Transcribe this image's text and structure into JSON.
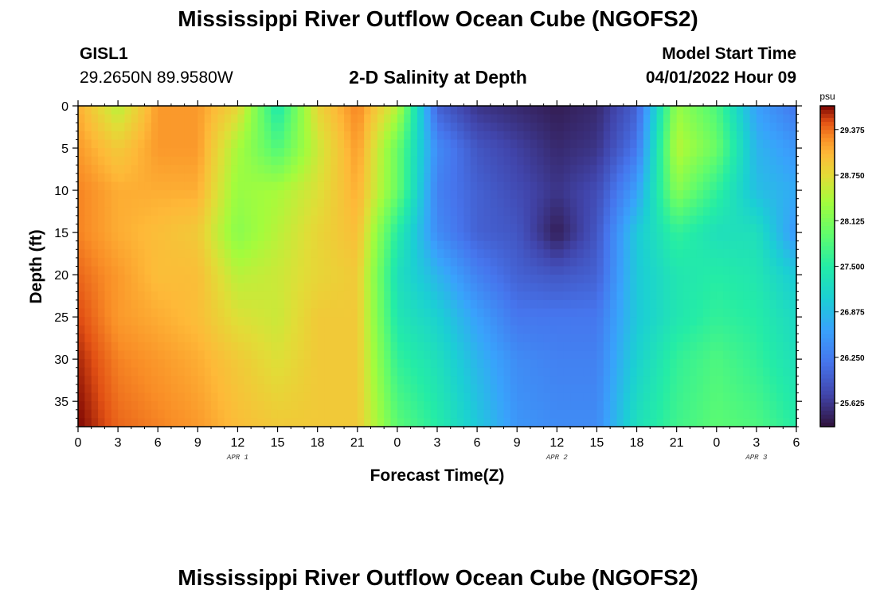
{
  "page": {
    "title": "Mississippi River Outflow Ocean Cube (NGOFS2)",
    "title_repeat": "Mississippi River Outflow Ocean Cube (NGOFS2)",
    "station": "GISL1",
    "coords": "29.2650N  89.9580W",
    "subtitle": "2-D Salinity at Depth",
    "model_start_label": "Model Start Time",
    "model_start_value": "04/01/2022 Hour 09"
  },
  "chart_data": {
    "type": "heatmap",
    "xlabel": "Forecast Time(Z)",
    "ylabel": "Depth (ft)",
    "x_ticks": [
      "0",
      "3",
      "6",
      "9",
      "12",
      "15",
      "18",
      "21",
      "0",
      "3",
      "6",
      "9",
      "12",
      "15",
      "18",
      "21",
      "0",
      "3",
      "6"
    ],
    "x_date_labels": [
      {
        "label": "APR 1",
        "at_hour": 12
      },
      {
        "label": "APR 2",
        "at_hour": 36
      },
      {
        "label": "APR 3",
        "at_hour": 51
      }
    ],
    "x_range_hours": [
      0,
      54
    ],
    "y_ticks": [
      0,
      5,
      10,
      15,
      20,
      25,
      30,
      35
    ],
    "y_range": [
      0,
      38
    ],
    "y_inverted": true,
    "colorbar": {
      "unit": "psu",
      "ticks": [
        "29.375",
        "28.750",
        "28.125",
        "27.500",
        "26.875",
        "26.250",
        "25.625"
      ],
      "range": [
        25.3,
        29.7
      ]
    },
    "grid_hours": [
      0,
      3,
      6,
      9,
      12,
      15,
      18,
      21,
      24,
      27,
      30,
      33,
      36,
      39,
      42,
      45,
      48,
      51,
      54
    ],
    "grid_depths": [
      0,
      5,
      10,
      15,
      20,
      25,
      30,
      38
    ],
    "salinity": [
      [
        29.1,
        28.5,
        29.2,
        29.2,
        28.8,
        27.4,
        28.8,
        29.3,
        28.5,
        26.0,
        25.6,
        25.5,
        25.4,
        25.5,
        26.0,
        28.3,
        27.8,
        26.6,
        26.2
      ],
      [
        29.2,
        28.9,
        29.2,
        29.2,
        28.4,
        27.8,
        28.6,
        29.2,
        28.0,
        26.4,
        25.9,
        25.7,
        25.5,
        25.6,
        26.2,
        28.5,
        28.0,
        26.8,
        26.5
      ],
      [
        29.3,
        29.1,
        29.1,
        29.1,
        28.3,
        28.4,
        28.7,
        29.1,
        28.0,
        26.3,
        26.0,
        25.8,
        25.6,
        25.8,
        26.6,
        28.2,
        27.6,
        26.9,
        26.7
      ],
      [
        29.3,
        29.1,
        29.0,
        28.9,
        28.2,
        28.5,
        28.8,
        29.0,
        27.5,
        26.4,
        26.0,
        25.9,
        25.4,
        25.9,
        27.0,
        27.6,
        27.3,
        27.3,
        26.5
      ],
      [
        29.4,
        29.2,
        29.0,
        29.0,
        28.5,
        28.6,
        28.8,
        28.9,
        27.3,
        26.8,
        26.3,
        26.0,
        25.9,
        26.0,
        27.0,
        27.4,
        27.5,
        27.4,
        27.0
      ],
      [
        29.5,
        29.2,
        29.1,
        29.0,
        28.7,
        28.6,
        28.9,
        28.9,
        27.4,
        27.1,
        26.6,
        26.2,
        26.2,
        26.2,
        27.0,
        27.4,
        27.6,
        27.5,
        27.2
      ],
      [
        29.6,
        29.3,
        29.2,
        29.1,
        28.9,
        28.7,
        28.9,
        28.9,
        27.6,
        27.3,
        26.8,
        26.4,
        26.3,
        26.3,
        27.1,
        27.6,
        27.8,
        27.6,
        27.3
      ],
      [
        29.7,
        29.4,
        29.3,
        29.2,
        29.0,
        28.9,
        28.9,
        28.9,
        27.9,
        27.5,
        27.0,
        26.5,
        26.4,
        26.4,
        27.3,
        27.7,
        27.9,
        27.8,
        27.5
      ]
    ]
  }
}
